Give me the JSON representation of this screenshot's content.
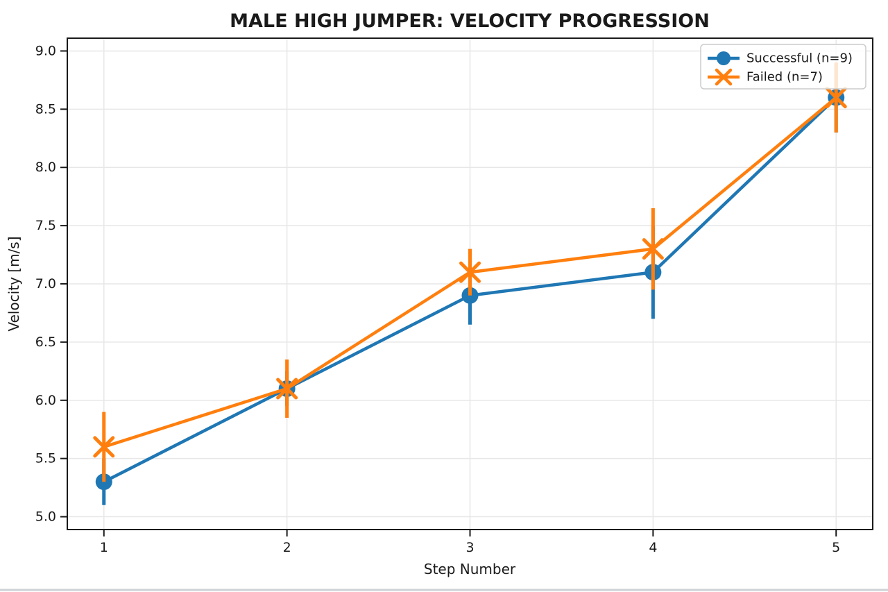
{
  "chart_data": {
    "type": "line",
    "title": "MALE HIGH JUMPER: VELOCITY PROGRESSION",
    "xlabel": "Step Number",
    "ylabel": "Velocity [m/s]",
    "x": [
      1,
      2,
      3,
      4,
      5
    ],
    "xtick_labels": [
      "1",
      "2",
      "3",
      "4",
      "5"
    ],
    "ytick_values": [
      5.0,
      5.5,
      6.0,
      6.5,
      7.0,
      7.5,
      8.0,
      8.5,
      9.0
    ],
    "ytick_labels": [
      "5.0",
      "5.5",
      "6.0",
      "6.5",
      "7.0",
      "7.5",
      "8.0",
      "8.5",
      "9.0"
    ],
    "xlim": [
      0.8,
      5.2
    ],
    "ylim": [
      4.89,
      9.11
    ],
    "grid": true,
    "legend_position": "upper right",
    "series": [
      {
        "name": "Successful (n=9)",
        "color": "#1f77b4",
        "marker": "circle",
        "values": [
          5.3,
          6.1,
          6.9,
          7.1,
          8.6
        ],
        "errors": [
          0.2,
          0.15,
          0.25,
          0.4,
          0.3
        ]
      },
      {
        "name": "Failed (n=7)",
        "color": "#ff7f0e",
        "marker": "x",
        "values": [
          5.6,
          6.1,
          7.1,
          7.3,
          8.6
        ],
        "errors": [
          0.3,
          0.25,
          0.2,
          0.35,
          0.3
        ]
      }
    ]
  },
  "colors": {
    "grid": "#e7e7e7",
    "spine": "#1a1a1a",
    "bottom_separator": "#cfd2d6"
  }
}
